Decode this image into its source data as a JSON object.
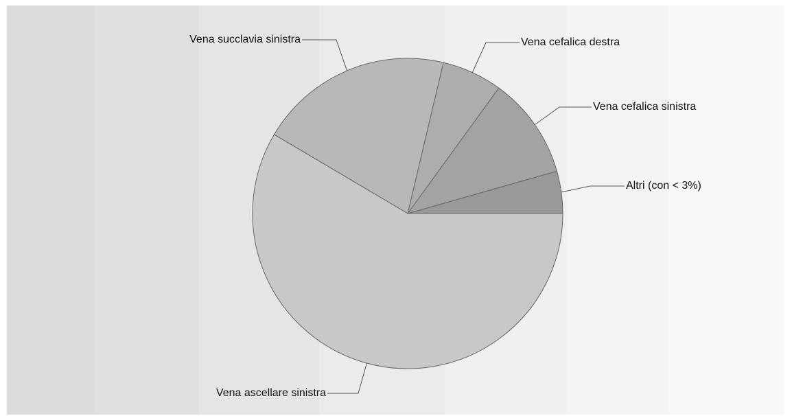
{
  "chart_data": {
    "type": "pie",
    "categories": [
      "Altri (con < 3%)",
      "Vena cefalica sinistra",
      "Vena cefalica destra",
      "Vena succlavia sinistra",
      "Vena ascellare sinistra"
    ],
    "values": [
      4.4,
      10.6,
      6.3,
      20.2,
      58.5
    ],
    "colors": [
      "#999999",
      "#a3a3a3",
      "#adadad",
      "#b8b8b8",
      "#c8c8c8"
    ]
  }
}
